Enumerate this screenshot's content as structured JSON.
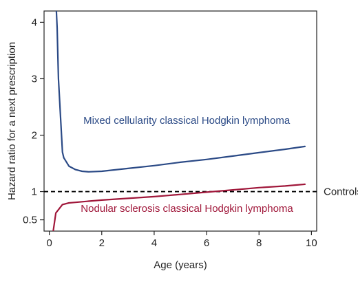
{
  "chart_data": {
    "type": "line",
    "title": "",
    "xlabel": "Age (years)",
    "ylabel": "Hazard ratio for a next prescription",
    "xlim": [
      -0.2,
      10.2
    ],
    "ylim": [
      0.3,
      4.2
    ],
    "x_ticks": [
      0,
      2,
      4,
      6,
      8,
      10
    ],
    "y_ticks": [
      0.5,
      1,
      2,
      3,
      4
    ],
    "y_tick_labels": [
      "0.5",
      "1",
      "2",
      "3",
      "4"
    ],
    "grid": false,
    "legend": "none",
    "reference_line": {
      "y": 1,
      "label": "Controls",
      "style": "dashed",
      "color": "#000000"
    },
    "series": [
      {
        "name": "Mixed cellularity classical Hodgkin lymphoma",
        "color": "#2b4a86",
        "x": [
          0.27,
          0.3,
          0.35,
          0.5,
          0.55,
          0.75,
          1.0,
          1.25,
          1.5,
          2.0,
          3.0,
          4.0,
          5.0,
          6.0,
          7.0,
          8.0,
          9.0,
          9.75
        ],
        "y": [
          4.2,
          3.9,
          3.0,
          1.7,
          1.6,
          1.45,
          1.39,
          1.36,
          1.35,
          1.36,
          1.41,
          1.46,
          1.52,
          1.57,
          1.63,
          1.69,
          1.75,
          1.8
        ]
      },
      {
        "name": "Nodular sclerosis classical Hodgkin lymphoma",
        "color": "#a0173a",
        "x": [
          0.15,
          0.25,
          0.5,
          0.75,
          1.0,
          1.5,
          2.0,
          3.0,
          4.0,
          5.0,
          6.0,
          7.0,
          8.0,
          9.0,
          9.75
        ],
        "y": [
          0.3,
          0.62,
          0.77,
          0.8,
          0.81,
          0.83,
          0.85,
          0.88,
          0.91,
          0.95,
          0.99,
          1.03,
          1.07,
          1.1,
          1.13
        ]
      }
    ],
    "annotations": [
      {
        "text": "Mixed cellularity classical Hodgkin lymphoma",
        "x": 1.3,
        "y": 2.2,
        "color": "#2b4a86"
      },
      {
        "text": "Nodular sclerosis classical Hodgkin lymphoma",
        "x": 1.2,
        "y": 0.64,
        "color": "#a0173a"
      }
    ]
  }
}
